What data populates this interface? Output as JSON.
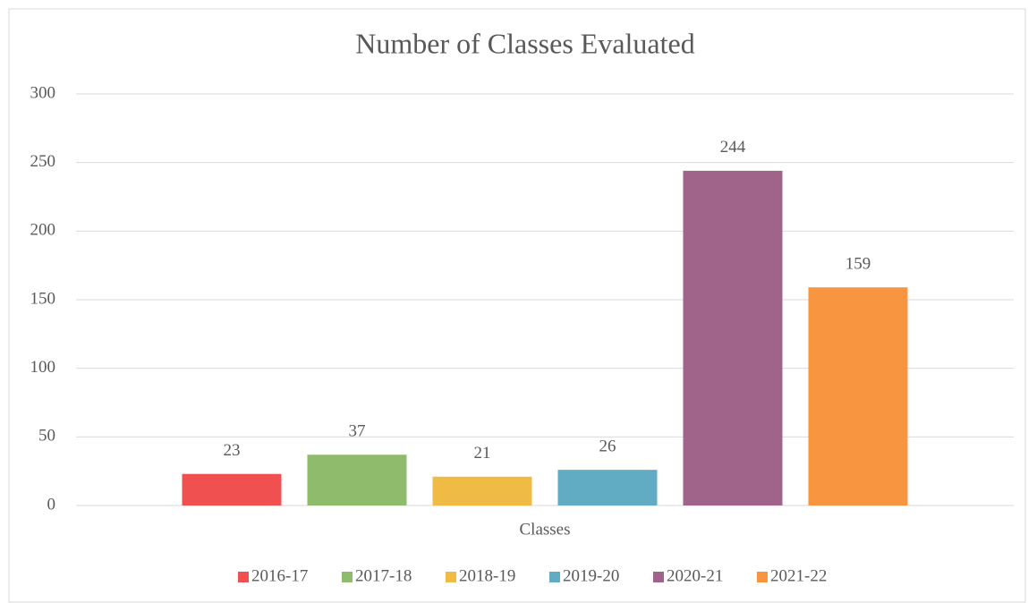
{
  "chart_data": {
    "type": "bar",
    "title": "Number of Classes Evaluated",
    "categories": [
      "Classes"
    ],
    "series": [
      {
        "name": "2016-17",
        "color": "#f05150",
        "values": [
          23
        ]
      },
      {
        "name": "2017-18",
        "color": "#8fbb6c",
        "values": [
          37
        ]
      },
      {
        "name": "2018-19",
        "color": "#efbb45",
        "values": [
          21
        ]
      },
      {
        "name": "2019-20",
        "color": "#61acc2",
        "values": [
          26
        ]
      },
      {
        "name": "2020-21",
        "color": "#a06389",
        "values": [
          244
        ]
      },
      {
        "name": "2021-22",
        "color": "#f79541",
        "values": [
          159
        ]
      }
    ],
    "ylim": [
      0,
      300
    ],
    "yticks": [
      0,
      50,
      100,
      150,
      200,
      250,
      300
    ],
    "grid": true,
    "legend": "bottom"
  }
}
